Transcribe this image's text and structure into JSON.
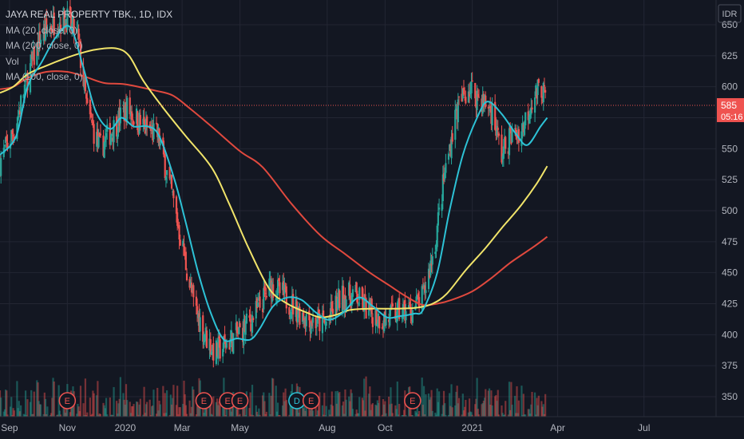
{
  "window": {
    "title": "JAYA REAL PROPERTY TBK., 1D, IDX"
  },
  "legend": {
    "title": "JAYA REAL PROPERTY TBK., 1D, IDX",
    "ma20": "MA (20, close, 0)",
    "ma200": "MA (200, close, 0)",
    "vol": "Vol",
    "ma100": "MA (100, close, 0)"
  },
  "colors": {
    "background": "#131722",
    "grid": "#232633",
    "up": "#26a69a",
    "down": "#ef5350",
    "ma20": "#2dc2d6",
    "ma100": "#e0493e",
    "ma200": "#f1e46a",
    "price_line": "#ef5350",
    "text": "#b2b5be"
  },
  "chart_data": {
    "type": "candlestick",
    "symbol": "JAYA REAL PROPERTY TBK.",
    "interval": "1D",
    "exchange": "IDX",
    "currency": "IDR",
    "x_ticks": [
      "Sep",
      "Nov",
      "2020",
      "Mar",
      "May",
      "Aug",
      "Oct",
      "2021",
      "Apr",
      "Jul"
    ],
    "y_ticks": [
      350,
      375,
      400,
      425,
      450,
      475,
      500,
      525,
      550,
      575,
      600,
      625,
      650
    ],
    "y_range": [
      332,
      660
    ],
    "x_range": [
      "2019-08-22",
      "2021-09-15"
    ],
    "last_price": "585",
    "countdown": "05:16",
    "event_markers": [
      {
        "date": "2019-11-01",
        "label": "E"
      },
      {
        "date": "2020-03-24",
        "label": "E"
      },
      {
        "date": "2020-04-18",
        "label": "E"
      },
      {
        "date": "2020-05-01",
        "label": "E"
      },
      {
        "date": "2020-06-30",
        "label": "D"
      },
      {
        "date": "2020-07-15",
        "label": "E"
      },
      {
        "date": "2020-10-30",
        "label": "E"
      }
    ],
    "ma20": [
      [
        "2019-08-22",
        545
      ],
      [
        "2019-09-08",
        560
      ],
      [
        "2019-09-20",
        600
      ],
      [
        "2019-10-05",
        620
      ],
      [
        "2019-10-20",
        640
      ],
      [
        "2019-11-04",
        648
      ],
      [
        "2019-11-18",
        615
      ],
      [
        "2019-12-01",
        580
      ],
      [
        "2019-12-16",
        566
      ],
      [
        "2019-12-28",
        575
      ],
      [
        "2020-01-10",
        568
      ],
      [
        "2020-01-25",
        568
      ],
      [
        "2020-02-06",
        560
      ],
      [
        "2020-02-22",
        525
      ],
      [
        "2020-03-05",
        490
      ],
      [
        "2020-03-18",
        450
      ],
      [
        "2020-03-31",
        418
      ],
      [
        "2020-04-14",
        396
      ],
      [
        "2020-04-28",
        397
      ],
      [
        "2020-05-12",
        396
      ],
      [
        "2020-05-22",
        405
      ],
      [
        "2020-06-05",
        423
      ],
      [
        "2020-06-20",
        430
      ],
      [
        "2020-07-05",
        428
      ],
      [
        "2020-07-20",
        418
      ],
      [
        "2020-08-03",
        412
      ],
      [
        "2020-08-18",
        418
      ],
      [
        "2020-09-03",
        430
      ],
      [
        "2020-09-18",
        423
      ],
      [
        "2020-10-03",
        414
      ],
      [
        "2020-10-17",
        415
      ],
      [
        "2020-11-01",
        417
      ],
      [
        "2020-11-10",
        420
      ],
      [
        "2020-11-25",
        450
      ],
      [
        "2020-12-08",
        500
      ],
      [
        "2020-12-22",
        545
      ],
      [
        "2021-01-06",
        575
      ],
      [
        "2021-01-17",
        588
      ],
      [
        "2021-02-01",
        578
      ],
      [
        "2021-02-16",
        562
      ],
      [
        "2021-02-28",
        553
      ],
      [
        "2021-03-14",
        568
      ],
      [
        "2021-03-21",
        575
      ]
    ],
    "ma100": [
      [
        "2019-08-22",
        598
      ],
      [
        "2019-09-05",
        600
      ],
      [
        "2019-09-20",
        607
      ],
      [
        "2019-10-10",
        612
      ],
      [
        "2019-11-01",
        612
      ],
      [
        "2019-11-20",
        608
      ],
      [
        "2019-12-10",
        603
      ],
      [
        "2020-01-01",
        602
      ],
      [
        "2020-02-01",
        597
      ],
      [
        "2020-02-20",
        593
      ],
      [
        "2020-03-10",
        582
      ],
      [
        "2020-04-01",
        568
      ],
      [
        "2020-05-01",
        548
      ],
      [
        "2020-05-25",
        535
      ],
      [
        "2020-06-25",
        505
      ],
      [
        "2020-07-25",
        480
      ],
      [
        "2020-08-20",
        465
      ],
      [
        "2020-09-15",
        450
      ],
      [
        "2020-10-05",
        440
      ],
      [
        "2020-10-25",
        430
      ],
      [
        "2020-11-10",
        424
      ],
      [
        "2020-11-25",
        425
      ],
      [
        "2020-12-10",
        428
      ],
      [
        "2021-01-01",
        435
      ],
      [
        "2021-01-20",
        445
      ],
      [
        "2021-02-10",
        458
      ],
      [
        "2021-03-05",
        470
      ],
      [
        "2021-03-21",
        479
      ]
    ],
    "ma200": [
      [
        "2019-08-22",
        595
      ],
      [
        "2019-09-05",
        600
      ],
      [
        "2019-09-20",
        610
      ],
      [
        "2019-10-10",
        617
      ],
      [
        "2019-10-30",
        623
      ],
      [
        "2019-11-15",
        627
      ],
      [
        "2019-12-01",
        630
      ],
      [
        "2019-12-22",
        631
      ],
      [
        "2020-01-05",
        625
      ],
      [
        "2020-01-20",
        605
      ],
      [
        "2020-02-10",
        583
      ],
      [
        "2020-03-05",
        560
      ],
      [
        "2020-04-01",
        535
      ],
      [
        "2020-04-20",
        505
      ],
      [
        "2020-05-10",
        470
      ],
      [
        "2020-06-01",
        437
      ],
      [
        "2020-06-20",
        425
      ],
      [
        "2020-07-10",
        418
      ],
      [
        "2020-07-25",
        414
      ],
      [
        "2020-08-10",
        416
      ],
      [
        "2020-08-25",
        420
      ],
      [
        "2020-09-15",
        421
      ],
      [
        "2020-10-15",
        421
      ],
      [
        "2020-11-05",
        422
      ],
      [
        "2020-11-20",
        425
      ],
      [
        "2020-12-05",
        433
      ],
      [
        "2020-12-25",
        452
      ],
      [
        "2021-01-15",
        470
      ],
      [
        "2021-02-01",
        486
      ],
      [
        "2021-02-20",
        503
      ],
      [
        "2021-03-10",
        522
      ],
      [
        "2021-03-21",
        536
      ]
    ],
    "price_anchors": [
      [
        "2019-08-22",
        540
      ],
      [
        "2019-09-06",
        565
      ],
      [
        "2019-09-20",
        608
      ],
      [
        "2019-10-04",
        640
      ],
      [
        "2019-10-18",
        652
      ],
      [
        "2019-10-31",
        655
      ],
      [
        "2019-11-12",
        640
      ],
      [
        "2019-11-22",
        580
      ],
      [
        "2019-12-05",
        550
      ],
      [
        "2019-12-18",
        565
      ],
      [
        "2020-01-03",
        583
      ],
      [
        "2020-01-20",
        568
      ],
      [
        "2020-02-05",
        560
      ],
      [
        "2020-02-20",
        510
      ],
      [
        "2020-03-03",
        465
      ],
      [
        "2020-03-13",
        425
      ],
      [
        "2020-03-25",
        400
      ],
      [
        "2020-04-05",
        385
      ],
      [
        "2020-04-15",
        392
      ],
      [
        "2020-04-25",
        398
      ],
      [
        "2020-05-05",
        405
      ],
      [
        "2020-05-20",
        420
      ],
      [
        "2020-06-03",
        440
      ],
      [
        "2020-06-15",
        432
      ],
      [
        "2020-06-30",
        420
      ],
      [
        "2020-07-15",
        412
      ],
      [
        "2020-07-30",
        408
      ],
      [
        "2020-08-15",
        430
      ],
      [
        "2020-08-30",
        432
      ],
      [
        "2020-09-15",
        418
      ],
      [
        "2020-09-30",
        412
      ],
      [
        "2020-10-15",
        418
      ],
      [
        "2020-10-30",
        420
      ],
      [
        "2020-11-10",
        430
      ],
      [
        "2020-11-22",
        470
      ],
      [
        "2020-12-03",
        530
      ],
      [
        "2020-12-15",
        580
      ],
      [
        "2020-12-28",
        600
      ],
      [
        "2021-01-10",
        590
      ],
      [
        "2021-01-22",
        580
      ],
      [
        "2021-02-01",
        545
      ],
      [
        "2021-02-10",
        560
      ],
      [
        "2021-02-22",
        565
      ],
      [
        "2021-03-05",
        590
      ],
      [
        "2021-03-15",
        600
      ],
      [
        "2021-03-21",
        585
      ]
    ]
  }
}
